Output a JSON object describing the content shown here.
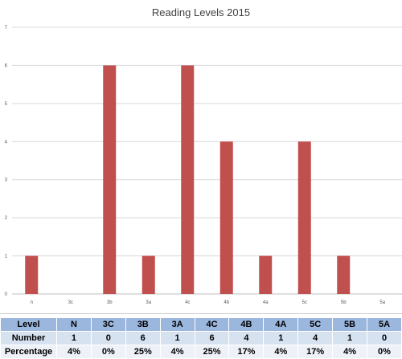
{
  "chart_data": {
    "type": "bar",
    "title": "Reading Levels 2015",
    "categories": [
      "n",
      "3c",
      "3b",
      "3a",
      "4c",
      "4b",
      "4a",
      "5c",
      "5b",
      "5a"
    ],
    "values": [
      1,
      0,
      6,
      1,
      6,
      4,
      1,
      4,
      1,
      0
    ],
    "ylim": [
      0,
      7
    ],
    "yticks": [
      "0",
      "1",
      "2",
      "3",
      "4",
      "5",
      "6",
      "7"
    ],
    "grid": true,
    "bar_color": "#c0504d",
    "xlabel": "",
    "ylabel": ""
  },
  "table": {
    "rows": [
      {
        "label": "Level",
        "cells": [
          "N",
          "3C",
          "3B",
          "3A",
          "4C",
          "4B",
          "4A",
          "5C",
          "5B",
          "5A"
        ]
      },
      {
        "label": "Number",
        "cells": [
          "1",
          "0",
          "6",
          "1",
          "6",
          "4",
          "1",
          "4",
          "1",
          "0"
        ]
      },
      {
        "label": "Percentage",
        "cells": [
          "4%",
          "0%",
          "25%",
          "4%",
          "25%",
          "17%",
          "4%",
          "17%",
          "4%",
          "0%"
        ]
      }
    ]
  }
}
